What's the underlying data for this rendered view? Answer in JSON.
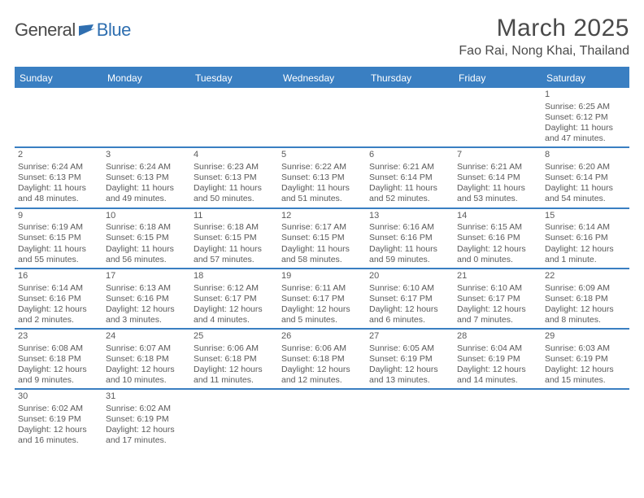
{
  "logo": {
    "text1": "General",
    "text2": "Blue",
    "color_primary": "#3a7fc2"
  },
  "title": "March 2025",
  "location": "Fao Rai, Nong Khai, Thailand",
  "day_headers": [
    "Sunday",
    "Monday",
    "Tuesday",
    "Wednesday",
    "Thursday",
    "Friday",
    "Saturday"
  ],
  "colors": {
    "header_bg": "#3a7fc2",
    "header_text": "#ffffff",
    "text": "#5a5a5a",
    "border": "#3a7fc2"
  },
  "weeks": [
    [
      null,
      null,
      null,
      null,
      null,
      null,
      {
        "n": "1",
        "sunrise": "6:25 AM",
        "sunset": "6:12 PM",
        "daylight": "11 hours and 47 minutes."
      }
    ],
    [
      {
        "n": "2",
        "sunrise": "6:24 AM",
        "sunset": "6:13 PM",
        "daylight": "11 hours and 48 minutes."
      },
      {
        "n": "3",
        "sunrise": "6:24 AM",
        "sunset": "6:13 PM",
        "daylight": "11 hours and 49 minutes."
      },
      {
        "n": "4",
        "sunrise": "6:23 AM",
        "sunset": "6:13 PM",
        "daylight": "11 hours and 50 minutes."
      },
      {
        "n": "5",
        "sunrise": "6:22 AM",
        "sunset": "6:13 PM",
        "daylight": "11 hours and 51 minutes."
      },
      {
        "n": "6",
        "sunrise": "6:21 AM",
        "sunset": "6:14 PM",
        "daylight": "11 hours and 52 minutes."
      },
      {
        "n": "7",
        "sunrise": "6:21 AM",
        "sunset": "6:14 PM",
        "daylight": "11 hours and 53 minutes."
      },
      {
        "n": "8",
        "sunrise": "6:20 AM",
        "sunset": "6:14 PM",
        "daylight": "11 hours and 54 minutes."
      }
    ],
    [
      {
        "n": "9",
        "sunrise": "6:19 AM",
        "sunset": "6:15 PM",
        "daylight": "11 hours and 55 minutes."
      },
      {
        "n": "10",
        "sunrise": "6:18 AM",
        "sunset": "6:15 PM",
        "daylight": "11 hours and 56 minutes."
      },
      {
        "n": "11",
        "sunrise": "6:18 AM",
        "sunset": "6:15 PM",
        "daylight": "11 hours and 57 minutes."
      },
      {
        "n": "12",
        "sunrise": "6:17 AM",
        "sunset": "6:15 PM",
        "daylight": "11 hours and 58 minutes."
      },
      {
        "n": "13",
        "sunrise": "6:16 AM",
        "sunset": "6:16 PM",
        "daylight": "11 hours and 59 minutes."
      },
      {
        "n": "14",
        "sunrise": "6:15 AM",
        "sunset": "6:16 PM",
        "daylight": "12 hours and 0 minutes."
      },
      {
        "n": "15",
        "sunrise": "6:14 AM",
        "sunset": "6:16 PM",
        "daylight": "12 hours and 1 minute."
      }
    ],
    [
      {
        "n": "16",
        "sunrise": "6:14 AM",
        "sunset": "6:16 PM",
        "daylight": "12 hours and 2 minutes."
      },
      {
        "n": "17",
        "sunrise": "6:13 AM",
        "sunset": "6:16 PM",
        "daylight": "12 hours and 3 minutes."
      },
      {
        "n": "18",
        "sunrise": "6:12 AM",
        "sunset": "6:17 PM",
        "daylight": "12 hours and 4 minutes."
      },
      {
        "n": "19",
        "sunrise": "6:11 AM",
        "sunset": "6:17 PM",
        "daylight": "12 hours and 5 minutes."
      },
      {
        "n": "20",
        "sunrise": "6:10 AM",
        "sunset": "6:17 PM",
        "daylight": "12 hours and 6 minutes."
      },
      {
        "n": "21",
        "sunrise": "6:10 AM",
        "sunset": "6:17 PM",
        "daylight": "12 hours and 7 minutes."
      },
      {
        "n": "22",
        "sunrise": "6:09 AM",
        "sunset": "6:18 PM",
        "daylight": "12 hours and 8 minutes."
      }
    ],
    [
      {
        "n": "23",
        "sunrise": "6:08 AM",
        "sunset": "6:18 PM",
        "daylight": "12 hours and 9 minutes."
      },
      {
        "n": "24",
        "sunrise": "6:07 AM",
        "sunset": "6:18 PM",
        "daylight": "12 hours and 10 minutes."
      },
      {
        "n": "25",
        "sunrise": "6:06 AM",
        "sunset": "6:18 PM",
        "daylight": "12 hours and 11 minutes."
      },
      {
        "n": "26",
        "sunrise": "6:06 AM",
        "sunset": "6:18 PM",
        "daylight": "12 hours and 12 minutes."
      },
      {
        "n": "27",
        "sunrise": "6:05 AM",
        "sunset": "6:19 PM",
        "daylight": "12 hours and 13 minutes."
      },
      {
        "n": "28",
        "sunrise": "6:04 AM",
        "sunset": "6:19 PM",
        "daylight": "12 hours and 14 minutes."
      },
      {
        "n": "29",
        "sunrise": "6:03 AM",
        "sunset": "6:19 PM",
        "daylight": "12 hours and 15 minutes."
      }
    ],
    [
      {
        "n": "30",
        "sunrise": "6:02 AM",
        "sunset": "6:19 PM",
        "daylight": "12 hours and 16 minutes."
      },
      {
        "n": "31",
        "sunrise": "6:02 AM",
        "sunset": "6:19 PM",
        "daylight": "12 hours and 17 minutes."
      },
      null,
      null,
      null,
      null,
      null
    ]
  ]
}
